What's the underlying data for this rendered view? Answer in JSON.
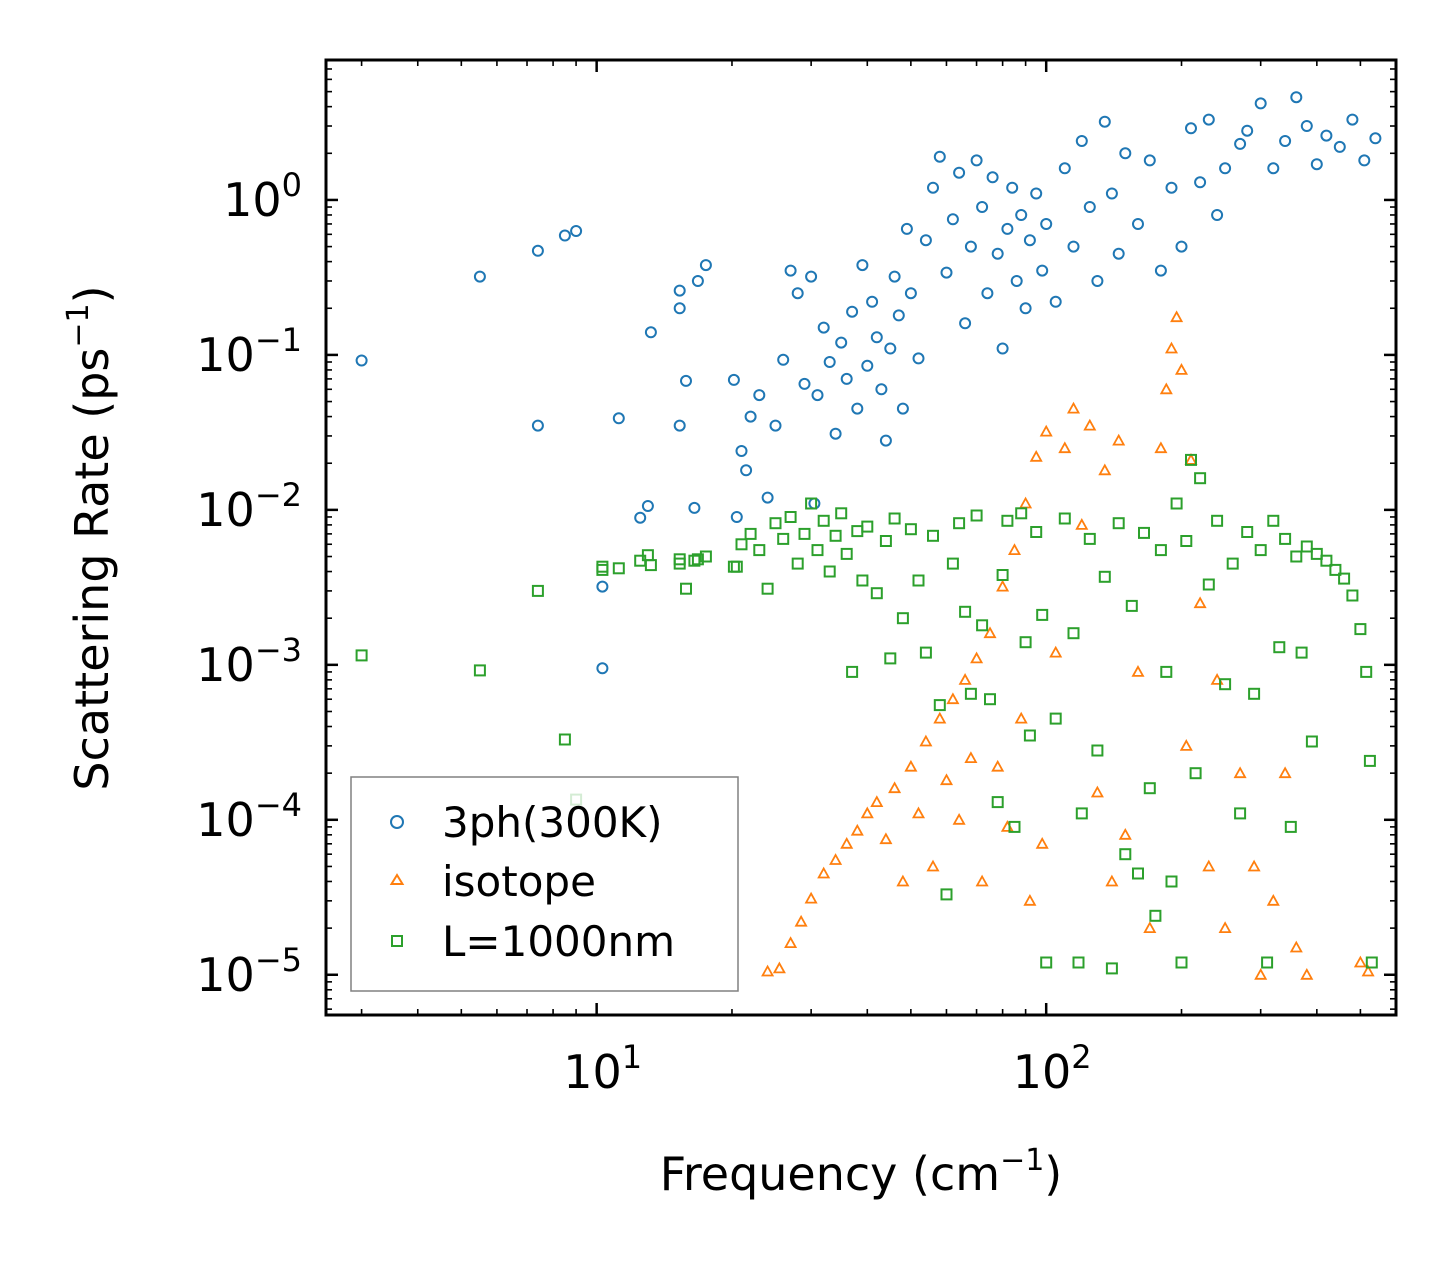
{
  "chart_data": {
    "type": "scatter",
    "xscale": "log",
    "yscale": "log",
    "xlabel": "Frequency (cm",
    "xlabel_exp": "−1",
    "xlabel_end": ")",
    "ylabel": "Scattering Rate (ps",
    "ylabel_exp": "−1",
    "ylabel_end": ")",
    "xlim": [
      2.5,
      600
    ],
    "ylim": [
      5.5e-06,
      8
    ],
    "x_ticks": [
      {
        "value": 10,
        "base": "10",
        "exp": "1"
      },
      {
        "value": 100,
        "base": "10",
        "exp": "2"
      }
    ],
    "y_ticks": [
      {
        "value": 1,
        "base": "10",
        "exp": "0"
      },
      {
        "value": 0.1,
        "base": "10",
        "exp": "−1"
      },
      {
        "value": 0.01,
        "base": "10",
        "exp": "−2"
      },
      {
        "value": 0.001,
        "base": "10",
        "exp": "−3"
      },
      {
        "value": 0.0001,
        "base": "10",
        "exp": "−4"
      },
      {
        "value": 1e-05,
        "base": "10",
        "exp": "−5"
      }
    ],
    "legend_position": "lower-left",
    "series": [
      {
        "name": "3ph(300K)",
        "marker": "circle",
        "color": "#1f77b4",
        "points": [
          [
            3.0,
            0.092
          ],
          [
            5.5,
            0.32
          ],
          [
            7.4,
            0.47
          ],
          [
            7.4,
            0.035
          ],
          [
            8.5,
            0.59
          ],
          [
            9.0,
            0.63
          ],
          [
            10.3,
            0.0032
          ],
          [
            10.3,
            0.00095
          ],
          [
            11.2,
            0.039
          ],
          [
            12.5,
            0.0089
          ],
          [
            13.0,
            0.0106
          ],
          [
            13.2,
            0.14
          ],
          [
            15.3,
            0.26
          ],
          [
            15.3,
            0.2
          ],
          [
            15.3,
            0.035
          ],
          [
            15.8,
            0.068
          ],
          [
            16.5,
            0.0103
          ],
          [
            16.8,
            0.3
          ],
          [
            17.5,
            0.38
          ],
          [
            20.2,
            0.069
          ],
          [
            20.5,
            0.009
          ],
          [
            21.0,
            0.024
          ],
          [
            21.5,
            0.018
          ],
          [
            22.0,
            0.04
          ],
          [
            23.0,
            0.055
          ],
          [
            24.0,
            0.012
          ],
          [
            25.0,
            0.035
          ],
          [
            26.0,
            0.093
          ],
          [
            27.0,
            0.35
          ],
          [
            28.0,
            0.25
          ],
          [
            29.0,
            0.065
          ],
          [
            30.0,
            0.32
          ],
          [
            30.5,
            0.011
          ],
          [
            31.0,
            0.055
          ],
          [
            32.0,
            0.15
          ],
          [
            33.0,
            0.09
          ],
          [
            34.0,
            0.031
          ],
          [
            35.0,
            0.12
          ],
          [
            36.0,
            0.07
          ],
          [
            37.0,
            0.19
          ],
          [
            38.0,
            0.045
          ],
          [
            39.0,
            0.38
          ],
          [
            40.0,
            0.085
          ],
          [
            41.0,
            0.22
          ],
          [
            42.0,
            0.13
          ],
          [
            43.0,
            0.06
          ],
          [
            44.0,
            0.028
          ],
          [
            45.0,
            0.11
          ],
          [
            46.0,
            0.32
          ],
          [
            47.0,
            0.18
          ],
          [
            48.0,
            0.045
          ],
          [
            49.0,
            0.65
          ],
          [
            50.0,
            0.25
          ],
          [
            52.0,
            0.095
          ],
          [
            54.0,
            0.55
          ],
          [
            56.0,
            1.2
          ],
          [
            58.0,
            1.9
          ],
          [
            60.0,
            0.34
          ],
          [
            62.0,
            0.75
          ],
          [
            64.0,
            1.5
          ],
          [
            66.0,
            0.16
          ],
          [
            68.0,
            0.5
          ],
          [
            70.0,
            1.8
          ],
          [
            72.0,
            0.9
          ],
          [
            74.0,
            0.25
          ],
          [
            76.0,
            1.4
          ],
          [
            78.0,
            0.45
          ],
          [
            80.0,
            0.11
          ],
          [
            82.0,
            0.65
          ],
          [
            84.0,
            1.2
          ],
          [
            86.0,
            0.3
          ],
          [
            88.0,
            0.8
          ],
          [
            90.0,
            0.2
          ],
          [
            92.0,
            0.55
          ],
          [
            95.0,
            1.1
          ],
          [
            98.0,
            0.35
          ],
          [
            100.0,
            0.7
          ],
          [
            105.0,
            0.22
          ],
          [
            110.0,
            1.6
          ],
          [
            115.0,
            0.5
          ],
          [
            120.0,
            2.4
          ],
          [
            125.0,
            0.9
          ],
          [
            130.0,
            0.3
          ],
          [
            135.0,
            3.2
          ],
          [
            140.0,
            1.1
          ],
          [
            145.0,
            0.45
          ],
          [
            150.0,
            2.0
          ],
          [
            160.0,
            0.7
          ],
          [
            170.0,
            1.8
          ],
          [
            180.0,
            0.35
          ],
          [
            190.0,
            1.2
          ],
          [
            200.0,
            0.5
          ],
          [
            210.0,
            2.9
          ],
          [
            220.0,
            1.3
          ],
          [
            230.0,
            3.3
          ],
          [
            240.0,
            0.8
          ],
          [
            250.0,
            1.6
          ],
          [
            270.0,
            2.3
          ],
          [
            280.0,
            2.8
          ],
          [
            300.0,
            4.2
          ],
          [
            320.0,
            1.6
          ],
          [
            340.0,
            2.4
          ],
          [
            360.0,
            4.6
          ],
          [
            380.0,
            3.0
          ],
          [
            400.0,
            1.7
          ],
          [
            420.0,
            2.6
          ],
          [
            450.0,
            2.2
          ],
          [
            480.0,
            3.3
          ],
          [
            510.0,
            1.8
          ],
          [
            540.0,
            2.5
          ]
        ]
      },
      {
        "name": "isotope",
        "marker": "triangle",
        "color": "#ff7f0e",
        "points": [
          [
            24.0,
            1.05e-05
          ],
          [
            25.5,
            1.1e-05
          ],
          [
            27.0,
            1.6e-05
          ],
          [
            28.5,
            2.2e-05
          ],
          [
            30.0,
            3.1e-05
          ],
          [
            32.0,
            4.5e-05
          ],
          [
            34.0,
            5.5e-05
          ],
          [
            36.0,
            7e-05
          ],
          [
            38.0,
            8.5e-05
          ],
          [
            40.0,
            0.00011
          ],
          [
            42.0,
            0.00013
          ],
          [
            44.0,
            7.5e-05
          ],
          [
            46.0,
            0.00016
          ],
          [
            48.0,
            4e-05
          ],
          [
            50.0,
            0.00022
          ],
          [
            52.0,
            0.00011
          ],
          [
            54.0,
            0.00032
          ],
          [
            56.0,
            5e-05
          ],
          [
            58.0,
            0.00045
          ],
          [
            60.0,
            0.00018
          ],
          [
            62.0,
            0.0006
          ],
          [
            64.0,
            0.0001
          ],
          [
            66.0,
            0.0008
          ],
          [
            68.0,
            0.00025
          ],
          [
            70.0,
            0.0011
          ],
          [
            72.0,
            4e-05
          ],
          [
            75.0,
            0.0016
          ],
          [
            78.0,
            0.00022
          ],
          [
            80.0,
            0.0032
          ],
          [
            82.0,
            9e-05
          ],
          [
            85.0,
            0.0055
          ],
          [
            88.0,
            0.00045
          ],
          [
            90.0,
            0.011
          ],
          [
            92.0,
            3e-05
          ],
          [
            95.0,
            0.022
          ],
          [
            98.0,
            7e-05
          ],
          [
            100.0,
            0.032
          ],
          [
            105.0,
            0.0012
          ],
          [
            110.0,
            0.025
          ],
          [
            115.0,
            0.045
          ],
          [
            120.0,
            0.008
          ],
          [
            125.0,
            0.035
          ],
          [
            130.0,
            0.00015
          ],
          [
            135.0,
            0.018
          ],
          [
            140.0,
            4e-05
          ],
          [
            145.0,
            0.028
          ],
          [
            150.0,
            8e-05
          ],
          [
            160.0,
            0.0009
          ],
          [
            170.0,
            2e-05
          ],
          [
            180.0,
            0.025
          ],
          [
            185.0,
            0.06
          ],
          [
            190.0,
            0.11
          ],
          [
            195.0,
            0.175
          ],
          [
            200.0,
            0.08
          ],
          [
            205.0,
            0.0003
          ],
          [
            210.0,
            0.021
          ],
          [
            220.0,
            0.0025
          ],
          [
            230.0,
            5e-05
          ],
          [
            240.0,
            0.0008
          ],
          [
            250.0,
            2e-05
          ],
          [
            270.0,
            0.0002
          ],
          [
            290.0,
            5e-05
          ],
          [
            300.0,
            1e-05
          ],
          [
            320.0,
            3e-05
          ],
          [
            340.0,
            0.0002
          ],
          [
            360.0,
            1.5e-05
          ],
          [
            380.0,
            1e-05
          ],
          [
            500.0,
            1.2e-05
          ],
          [
            520.0,
            1.05e-05
          ]
        ]
      },
      {
        "name": "L=1000nm",
        "marker": "square",
        "color": "#2ca02c",
        "points": [
          [
            3.0,
            0.00115
          ],
          [
            5.5,
            0.00092
          ],
          [
            7.4,
            0.003
          ],
          [
            8.5,
            0.00033
          ],
          [
            9.0,
            0.000135
          ],
          [
            10.3,
            0.0043
          ],
          [
            10.3,
            0.0041
          ],
          [
            11.2,
            0.0042
          ],
          [
            12.5,
            0.0047
          ],
          [
            13.0,
            0.0051
          ],
          [
            13.2,
            0.0044
          ],
          [
            15.3,
            0.0048
          ],
          [
            15.3,
            0.0045
          ],
          [
            15.8,
            0.0031
          ],
          [
            16.5,
            0.0047
          ],
          [
            16.8,
            0.0048
          ],
          [
            17.5,
            0.005
          ],
          [
            20.2,
            0.0043
          ],
          [
            20.5,
            0.0043
          ],
          [
            21.0,
            0.006
          ],
          [
            22.0,
            0.007
          ],
          [
            23.0,
            0.0055
          ],
          [
            24.0,
            0.0031
          ],
          [
            25.0,
            0.0082
          ],
          [
            26.0,
            0.0065
          ],
          [
            27.0,
            0.009
          ],
          [
            28.0,
            0.0045
          ],
          [
            29.0,
            0.007
          ],
          [
            30.0,
            0.011
          ],
          [
            31.0,
            0.0055
          ],
          [
            32.0,
            0.0085
          ],
          [
            33.0,
            0.004
          ],
          [
            34.0,
            0.0068
          ],
          [
            35.0,
            0.0095
          ],
          [
            36.0,
            0.0052
          ],
          [
            37.0,
            0.0009
          ],
          [
            38.0,
            0.0073
          ],
          [
            39.0,
            0.0035
          ],
          [
            40.0,
            0.0078
          ],
          [
            42.0,
            0.0029
          ],
          [
            44.0,
            0.0063
          ],
          [
            45.0,
            0.0011
          ],
          [
            46.0,
            0.0088
          ],
          [
            48.0,
            0.002
          ],
          [
            50.0,
            0.0075
          ],
          [
            52.0,
            0.0035
          ],
          [
            54.0,
            0.0012
          ],
          [
            56.0,
            0.0068
          ],
          [
            58.0,
            0.00055
          ],
          [
            60.0,
            3.3e-05
          ],
          [
            62.0,
            0.0045
          ],
          [
            64.0,
            0.0082
          ],
          [
            66.0,
            0.0022
          ],
          [
            68.0,
            0.00065
          ],
          [
            70.0,
            0.0092
          ],
          [
            72.0,
            0.0018
          ],
          [
            75.0,
            0.0006
          ],
          [
            78.0,
            0.00013
          ],
          [
            80.0,
            0.0038
          ],
          [
            82.0,
            0.0085
          ],
          [
            85.0,
            9e-05
          ],
          [
            88.0,
            0.0095
          ],
          [
            90.0,
            0.0014
          ],
          [
            92.0,
            0.00035
          ],
          [
            95.0,
            0.0072
          ],
          [
            98.0,
            0.0021
          ],
          [
            100.0,
            1.2e-05
          ],
          [
            105.0,
            0.00045
          ],
          [
            110.0,
            0.0088
          ],
          [
            115.0,
            0.0016
          ],
          [
            118.0,
            1.2e-05
          ],
          [
            120.0,
            0.00011
          ],
          [
            125.0,
            0.0065
          ],
          [
            130.0,
            0.00028
          ],
          [
            135.0,
            0.0037
          ],
          [
            140.0,
            1.1e-05
          ],
          [
            145.0,
            0.0082
          ],
          [
            150.0,
            6e-05
          ],
          [
            155.0,
            0.0024
          ],
          [
            160.0,
            4.5e-05
          ],
          [
            165.0,
            0.0071
          ],
          [
            170.0,
            0.00016
          ],
          [
            175.0,
            2.4e-05
          ],
          [
            180.0,
            0.0055
          ],
          [
            185.0,
            0.0009
          ],
          [
            190.0,
            4e-05
          ],
          [
            195.0,
            0.011
          ],
          [
            200.0,
            1.2e-05
          ],
          [
            205.0,
            0.0063
          ],
          [
            210.0,
            0.021
          ],
          [
            215.0,
            0.0002
          ],
          [
            220.0,
            0.016
          ],
          [
            230.0,
            0.0033
          ],
          [
            240.0,
            0.0085
          ],
          [
            250.0,
            0.00075
          ],
          [
            260.0,
            0.0045
          ],
          [
            270.0,
            0.00011
          ],
          [
            280.0,
            0.0072
          ],
          [
            290.0,
            0.00065
          ],
          [
            300.0,
            0.0055
          ],
          [
            310.0,
            1.2e-05
          ],
          [
            320.0,
            0.0085
          ],
          [
            330.0,
            0.0013
          ],
          [
            340.0,
            0.0065
          ],
          [
            350.0,
            9e-05
          ],
          [
            360.0,
            0.005
          ],
          [
            370.0,
            0.0012
          ],
          [
            380.0,
            0.0058
          ],
          [
            390.0,
            0.00032
          ],
          [
            400.0,
            0.0052
          ],
          [
            420.0,
            0.0047
          ],
          [
            440.0,
            0.0041
          ],
          [
            460.0,
            0.0036
          ],
          [
            480.0,
            0.0028
          ],
          [
            500.0,
            0.0017
          ],
          [
            515.0,
            0.0009
          ],
          [
            525.0,
            0.00024
          ],
          [
            530.0,
            1.2e-05
          ]
        ]
      }
    ]
  }
}
